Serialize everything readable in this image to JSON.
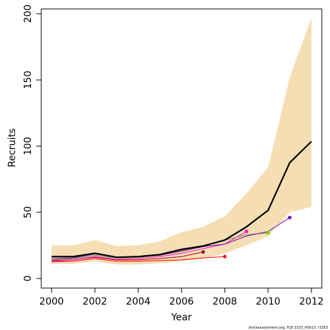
{
  "chart_data": {
    "type": "line",
    "title": "",
    "xlabel": "Year",
    "ylabel": "Recruits",
    "xlim": [
      2000,
      2012
    ],
    "ylim": [
      0,
      200
    ],
    "xticks": [
      2000,
      2002,
      2004,
      2006,
      2008,
      2010,
      2012
    ],
    "yticks": [
      0,
      50,
      100,
      150,
      200
    ],
    "grid": false,
    "footnote": "stockassessment.org, FLE-2223_00b13, r3253",
    "band": {
      "x": [
        2000,
        2001,
        2002,
        2003,
        2004,
        2005,
        2006,
        2007,
        2008,
        2009,
        2010,
        2011,
        2012
      ],
      "lower": [
        11,
        11,
        13,
        10.5,
        10.5,
        11.5,
        13,
        15,
        19,
        25,
        32,
        50,
        54
      ],
      "upper": [
        25,
        25,
        29,
        24.5,
        25,
        28,
        35,
        39,
        47,
        64,
        84,
        152,
        197
      ]
    },
    "main_series": {
      "x": [
        2000,
        2001,
        2002,
        2003,
        2004,
        2005,
        2006,
        2007,
        2008,
        2009,
        2010,
        2011,
        2012
      ],
      "values": [
        16.5,
        16.5,
        19,
        16,
        16.5,
        18,
        22,
        24.5,
        29,
        39,
        51.5,
        87.5,
        103.5
      ]
    },
    "retro_series": [
      {
        "color": "#ff0000",
        "end_x": 2008,
        "end_y": 16.5,
        "values": [
          12.5,
          13,
          15,
          13,
          13,
          13.5,
          14,
          15.5,
          16.5
        ]
      },
      {
        "color": "#9b0032",
        "end_x": 2007,
        "end_y": 20,
        "values": [
          13.5,
          14,
          16,
          14,
          14,
          15,
          16.5,
          20
        ]
      },
      {
        "color": "#ff00cc",
        "end_x": 2009,
        "end_y": 35.5,
        "values": [
          13,
          14,
          16.5,
          14.5,
          15,
          16.5,
          19,
          22.5,
          26,
          35.5
        ]
      },
      {
        "color": "#5a8a3a",
        "end_x": 2010,
        "end_y": 34.5,
        "values": [
          14,
          15,
          17.5,
          15.5,
          16,
          17.5,
          20.5,
          24,
          29,
          33,
          34.5
        ]
      },
      {
        "color": "#7b00c8",
        "end_x": 2011,
        "end_y": 46,
        "values": [
          15,
          15.5,
          18.5,
          16,
          16.5,
          17.5,
          21,
          24,
          26,
          32,
          35.5,
          46
        ]
      },
      {
        "color": "#ffd700",
        "end_x": 2010,
        "end_y": 34,
        "values": [
          null,
          null,
          null,
          null,
          null,
          null,
          null,
          null,
          null,
          null,
          34
        ]
      },
      {
        "color": "#66dd00",
        "end_x": 2010,
        "end_y": 34.5,
        "values": [
          null,
          null,
          null,
          null,
          null,
          null,
          null,
          null,
          null,
          null,
          34.5
        ]
      }
    ],
    "colors": {
      "band": "#f5deb3",
      "main": "#000000"
    }
  }
}
